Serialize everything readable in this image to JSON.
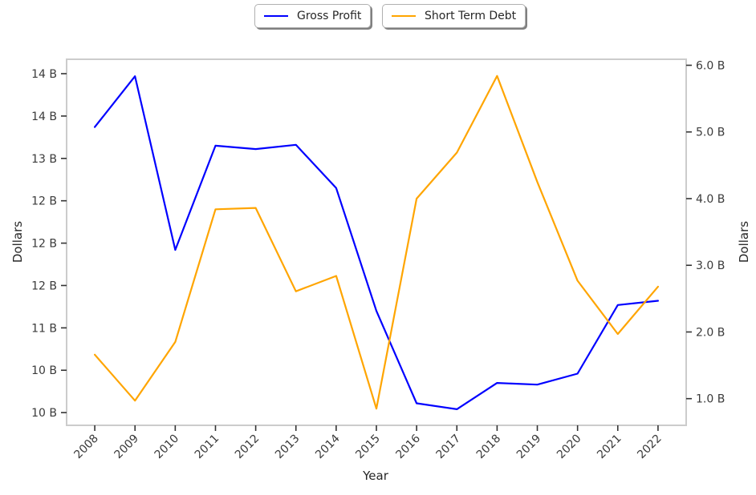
{
  "chart_data": {
    "type": "line",
    "title": "",
    "xlabel": "Year",
    "ylabel_left": "Dollars",
    "ylabel_right": "Dollars",
    "grid": false,
    "legend_position": "top-center",
    "categories": [
      "2008",
      "2009",
      "2010",
      "2011",
      "2012",
      "2013",
      "2014",
      "2015",
      "2016",
      "2017",
      "2018",
      "2019",
      "2020",
      "2021",
      "2022"
    ],
    "series": [
      {
        "name": "Gross Profit",
        "axis": "left",
        "color": "#0000ff",
        "values": [
          13.37,
          13.97,
          11.92,
          13.15,
          13.11,
          13.16,
          12.65,
          11.2,
          10.11,
          10.04,
          10.35,
          10.33,
          10.46,
          11.27,
          11.32
        ]
      },
      {
        "name": "Short Term Debt",
        "axis": "right",
        "color": "#ffa500",
        "values": [
          1.66,
          0.97,
          1.85,
          3.84,
          3.86,
          2.61,
          2.84,
          0.85,
          4.0,
          4.69,
          5.84,
          4.25,
          2.77,
          1.97,
          2.68
        ]
      }
    ],
    "left_axis": {
      "ylim": [
        9.85,
        14.17
      ],
      "ticks": [
        14.0,
        13.5,
        13.0,
        12.5,
        12.0,
        11.5,
        11.0,
        10.5,
        10.0
      ],
      "tick_labels": [
        "14 B",
        "14 B",
        "13 B",
        "12 B",
        "12 B",
        "12 B",
        "11 B",
        "10 B",
        "10 B"
      ]
    },
    "right_axis": {
      "ylim": [
        0.6,
        6.09
      ],
      "ticks": [
        6.0,
        5.0,
        4.0,
        3.0,
        2.0,
        1.0
      ],
      "tick_labels": [
        "6.0 B",
        "5.0 B",
        "4.0 B",
        "3.0 B",
        "2.0 B",
        "1.0 B"
      ]
    },
    "x_axis": {
      "xlim": [
        -0.7,
        14.7
      ]
    },
    "colors": {
      "spine": "#cccccc",
      "tick_mark": "#333333",
      "tick_text": "#3a3a3a",
      "text": "#262626"
    }
  }
}
